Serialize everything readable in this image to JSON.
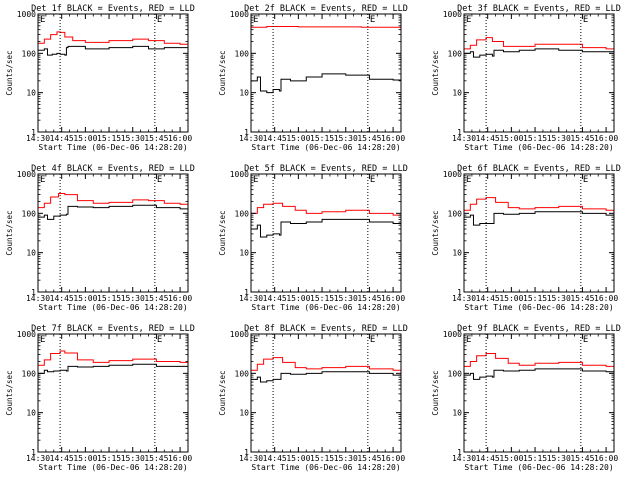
{
  "figure": {
    "ylabel": "Counts/sec",
    "xlabel": "Start Time (06-Dec-06 14:28:20)",
    "flare_marker": "E",
    "colors": {
      "events": "#000000",
      "lld": "#ff0000",
      "axes": "#000000"
    }
  },
  "chart_data": [
    {
      "type": "line",
      "title": "Det 1f BLACK = Events, RED = LLD",
      "xlabel": "Start Time (06-Dec-06 14:28:20)",
      "ylabel": "Counts/sec",
      "x_ticks": [
        "14:30",
        "14:45",
        "15:00",
        "15:15",
        "15:30",
        "15:45",
        "16:00"
      ],
      "y_ticks": [
        "1",
        "10",
        "100",
        "1000"
      ],
      "ylim": [
        1,
        1000
      ],
      "y_scale": "log",
      "xlim": [
        "14:30",
        "16:05"
      ],
      "vlines": [
        "14:44",
        "15:44"
      ],
      "series": [
        {
          "key": "events",
          "x": [
            "14:30",
            "14:34",
            "14:36",
            "14:39",
            "14:42",
            "14:44",
            "14:47",
            "14:48",
            "14:49",
            "14:52",
            "15:00",
            "15:15",
            "15:30",
            "15:40",
            "15:50",
            "16:00",
            "16:05"
          ],
          "y": [
            120,
            130,
            90,
            95,
            100,
            95,
            90,
            140,
            150,
            150,
            130,
            140,
            150,
            130,
            140,
            140,
            140
          ]
        },
        {
          "key": "lld",
          "x": [
            "14:30",
            "14:34",
            "14:38",
            "14:42",
            "14:44",
            "14:47",
            "14:52",
            "15:00",
            "15:15",
            "15:30",
            "15:40",
            "15:50",
            "16:00",
            "16:05"
          ],
          "y": [
            180,
            230,
            300,
            350,
            340,
            260,
            210,
            190,
            210,
            230,
            210,
            180,
            170,
            170
          ]
        }
      ]
    },
    {
      "type": "line",
      "title": "Det 2f BLACK = Events, RED = LLD",
      "xlabel": "Start Time (06-Dec-06 14:28:20)",
      "ylabel": "Counts/sec",
      "x_ticks": [
        "14:30",
        "14:45",
        "15:00",
        "15:15",
        "15:30",
        "15:45",
        "16:00"
      ],
      "y_ticks": [
        "1",
        "10",
        "100",
        "1000"
      ],
      "ylim": [
        1,
        1000
      ],
      "y_scale": "log",
      "xlim": [
        "14:30",
        "16:05"
      ],
      "vlines": [
        "14:44",
        "15:44"
      ],
      "series": [
        {
          "key": "events",
          "x": [
            "14:30",
            "14:34",
            "14:36",
            "14:40",
            "14:44",
            "14:48",
            "14:49",
            "14:55",
            "15:05",
            "15:15",
            "15:30",
            "15:45",
            "16:00",
            "16:05"
          ],
          "y": [
            20,
            25,
            11,
            10,
            12,
            11,
            22,
            20,
            25,
            30,
            28,
            22,
            21,
            21
          ]
        },
        {
          "key": "lld",
          "x": [
            "14:30",
            "14:40",
            "15:00",
            "15:20",
            "15:40",
            "16:05"
          ],
          "y": [
            460,
            480,
            470,
            470,
            460,
            460
          ]
        }
      ]
    },
    {
      "type": "line",
      "title": "Det 3f BLACK = Events, RED = LLD",
      "xlabel": "Start Time (06-Dec-06 14:28:20)",
      "ylabel": "Counts/sec",
      "x_ticks": [
        "14:30",
        "14:45",
        "15:00",
        "15:15",
        "15:30",
        "15:45",
        "16:00"
      ],
      "y_ticks": [
        "1",
        "10",
        "100",
        "1000"
      ],
      "ylim": [
        1,
        1000
      ],
      "y_scale": "log",
      "xlim": [
        "14:30",
        "16:05"
      ],
      "vlines": [
        "14:44",
        "15:44"
      ],
      "series": [
        {
          "key": "events",
          "x": [
            "14:30",
            "14:34",
            "14:36",
            "14:40",
            "14:44",
            "14:48",
            "14:49",
            "14:55",
            "15:05",
            "15:15",
            "15:30",
            "15:45",
            "16:00",
            "16:05"
          ],
          "y": [
            100,
            110,
            80,
            90,
            95,
            85,
            120,
            110,
            120,
            130,
            120,
            110,
            110,
            110
          ]
        },
        {
          "key": "lld",
          "x": [
            "14:30",
            "14:34",
            "14:38",
            "14:44",
            "14:48",
            "14:55",
            "15:05",
            "15:15",
            "15:30",
            "15:45",
            "16:00",
            "16:05"
          ],
          "y": [
            130,
            160,
            220,
            250,
            200,
            150,
            150,
            170,
            170,
            140,
            130,
            130
          ]
        }
      ]
    },
    {
      "type": "line",
      "title": "Det 4f BLACK = Events, RED = LLD",
      "xlabel": "Start Time (06-Dec-06 14:28:20)",
      "ylabel": "Counts/sec",
      "x_ticks": [
        "14:30",
        "14:45",
        "15:00",
        "15:15",
        "15:30",
        "15:45",
        "16:00"
      ],
      "y_ticks": [
        "1",
        "10",
        "100",
        "1000"
      ],
      "ylim": [
        1,
        1000
      ],
      "y_scale": "log",
      "xlim": [
        "14:30",
        "16:05"
      ],
      "vlines": [
        "14:44",
        "15:44"
      ],
      "series": [
        {
          "key": "events",
          "x": [
            "14:30",
            "14:34",
            "14:36",
            "14:40",
            "14:44",
            "14:48",
            "14:49",
            "14:55",
            "15:05",
            "15:15",
            "15:30",
            "15:45",
            "16:00",
            "16:05"
          ],
          "y": [
            80,
            90,
            70,
            85,
            90,
            95,
            150,
            145,
            140,
            150,
            160,
            140,
            130,
            130
          ]
        },
        {
          "key": "lld",
          "x": [
            "14:30",
            "14:34",
            "14:38",
            "14:43",
            "14:47",
            "14:55",
            "15:05",
            "15:15",
            "15:30",
            "15:40",
            "15:50",
            "16:00",
            "16:05"
          ],
          "y": [
            140,
            180,
            260,
            320,
            300,
            210,
            180,
            190,
            220,
            210,
            180,
            170,
            170
          ]
        }
      ]
    },
    {
      "type": "line",
      "title": "Det 5f BLACK = Events, RED = LLD",
      "xlabel": "Start Time (06-Dec-06 14:28:20)",
      "ylabel": "Counts/sec",
      "x_ticks": [
        "14:30",
        "14:45",
        "15:00",
        "15:15",
        "15:30",
        "15:45",
        "16:00"
      ],
      "y_ticks": [
        "1",
        "10",
        "100",
        "1000"
      ],
      "ylim": [
        1,
        1000
      ],
      "y_scale": "log",
      "xlim": [
        "14:30",
        "16:05"
      ],
      "vlines": [
        "14:44",
        "15:44"
      ],
      "series": [
        {
          "key": "events",
          "x": [
            "14:30",
            "14:34",
            "14:36",
            "14:40",
            "14:44",
            "14:48",
            "14:49",
            "14:55",
            "15:05",
            "15:15",
            "15:30",
            "15:45",
            "16:00",
            "16:05"
          ],
          "y": [
            40,
            50,
            25,
            28,
            30,
            28,
            60,
            55,
            60,
            70,
            70,
            60,
            55,
            55
          ]
        },
        {
          "key": "lld",
          "x": [
            "14:30",
            "14:34",
            "14:38",
            "14:44",
            "14:50",
            "14:58",
            "15:05",
            "15:15",
            "15:30",
            "15:45",
            "16:00",
            "16:05"
          ],
          "y": [
            100,
            140,
            170,
            180,
            150,
            120,
            100,
            110,
            120,
            100,
            90,
            90
          ]
        }
      ]
    },
    {
      "type": "line",
      "title": "Det 6f BLACK = Events, RED = LLD",
      "xlabel": "Start Time (06-Dec-06 14:28:20)",
      "ylabel": "Counts/sec",
      "x_ticks": [
        "14:30",
        "14:45",
        "15:00",
        "15:15",
        "15:30",
        "15:45",
        "16:00"
      ],
      "y_ticks": [
        "1",
        "10",
        "100",
        "1000"
      ],
      "ylim": [
        1,
        1000
      ],
      "y_scale": "log",
      "xlim": [
        "14:30",
        "16:05"
      ],
      "vlines": [
        "14:44",
        "15:44"
      ],
      "series": [
        {
          "key": "events",
          "x": [
            "14:30",
            "14:34",
            "14:36",
            "14:40",
            "14:44",
            "14:48",
            "14:49",
            "14:55",
            "15:05",
            "15:15",
            "15:30",
            "15:45",
            "16:00",
            "16:05"
          ],
          "y": [
            80,
            90,
            50,
            55,
            55,
            55,
            100,
            95,
            100,
            110,
            110,
            100,
            90,
            90
          ]
        },
        {
          "key": "lld",
          "x": [
            "14:30",
            "14:34",
            "14:38",
            "14:44",
            "14:50",
            "14:58",
            "15:05",
            "15:15",
            "15:30",
            "15:45",
            "16:00",
            "16:05"
          ],
          "y": [
            120,
            170,
            230,
            250,
            190,
            140,
            130,
            140,
            150,
            130,
            120,
            120
          ]
        }
      ]
    },
    {
      "type": "line",
      "title": "Det 7f BLACK = Events, RED = LLD",
      "xlabel": "Start Time (06-Dec-06 14:28:20)",
      "ylabel": "Counts/sec",
      "x_ticks": [
        "14:30",
        "14:45",
        "15:00",
        "15:15",
        "15:30",
        "15:45",
        "16:00"
      ],
      "y_ticks": [
        "1",
        "10",
        "100",
        "1000"
      ],
      "ylim": [
        1,
        1000
      ],
      "y_scale": "log",
      "xlim": [
        "14:30",
        "16:05"
      ],
      "vlines": [
        "14:44",
        "15:44"
      ],
      "series": [
        {
          "key": "events",
          "x": [
            "14:30",
            "14:34",
            "14:36",
            "14:40",
            "14:44",
            "14:48",
            "14:49",
            "14:55",
            "15:05",
            "15:15",
            "15:30",
            "15:45",
            "16:00",
            "16:05"
          ],
          "y": [
            100,
            120,
            110,
            115,
            120,
            115,
            150,
            145,
            150,
            160,
            170,
            150,
            150,
            150
          ]
        },
        {
          "key": "lld",
          "x": [
            "14:30",
            "14:34",
            "14:38",
            "14:44",
            "14:47",
            "14:55",
            "15:05",
            "15:15",
            "15:30",
            "15:45",
            "16:00",
            "16:05"
          ],
          "y": [
            160,
            220,
            320,
            370,
            330,
            220,
            190,
            210,
            230,
            200,
            190,
            190
          ]
        }
      ]
    },
    {
      "type": "line",
      "title": "Det 8f BLACK = Events, RED = LLD",
      "xlabel": "Start Time (06-Dec-06 14:28:20)",
      "ylabel": "Counts/sec",
      "x_ticks": [
        "14:30",
        "14:45",
        "15:00",
        "15:15",
        "15:30",
        "15:45",
        "16:00"
      ],
      "y_ticks": [
        "1",
        "10",
        "100",
        "1000"
      ],
      "ylim": [
        1,
        1000
      ],
      "y_scale": "log",
      "xlim": [
        "14:30",
        "16:05"
      ],
      "vlines": [
        "14:44",
        "15:44"
      ],
      "series": [
        {
          "key": "events",
          "x": [
            "14:30",
            "14:34",
            "14:36",
            "14:40",
            "14:44",
            "14:48",
            "14:49",
            "14:55",
            "15:05",
            "15:15",
            "15:30",
            "15:45",
            "16:00",
            "16:05"
          ],
          "y": [
            70,
            80,
            60,
            65,
            70,
            70,
            100,
            95,
            100,
            110,
            110,
            100,
            90,
            90
          ]
        },
        {
          "key": "lld",
          "x": [
            "14:30",
            "14:34",
            "14:38",
            "14:44",
            "14:50",
            "14:58",
            "15:05",
            "15:15",
            "15:30",
            "15:45",
            "16:00",
            "16:05"
          ],
          "y": [
            120,
            170,
            230,
            250,
            190,
            140,
            130,
            140,
            150,
            130,
            120,
            120
          ]
        }
      ]
    },
    {
      "type": "line",
      "title": "Det 9f BLACK = Events, RED = LLD",
      "xlabel": "Start Time (06-Dec-06 14:28:20)",
      "ylabel": "Counts/sec",
      "x_ticks": [
        "14:30",
        "14:45",
        "15:00",
        "15:15",
        "15:30",
        "15:45",
        "16:00"
      ],
      "y_ticks": [
        "1",
        "10",
        "100",
        "1000"
      ],
      "ylim": [
        1,
        1000
      ],
      "y_scale": "log",
      "xlim": [
        "14:30",
        "16:05"
      ],
      "vlines": [
        "14:44",
        "15:44"
      ],
      "series": [
        {
          "key": "events",
          "x": [
            "14:30",
            "14:34",
            "14:36",
            "14:40",
            "14:44",
            "14:48",
            "14:49",
            "14:55",
            "15:05",
            "15:15",
            "15:30",
            "15:45",
            "16:00",
            "16:05"
          ],
          "y": [
            90,
            100,
            70,
            80,
            85,
            80,
            120,
            115,
            120,
            130,
            130,
            115,
            110,
            110
          ]
        },
        {
          "key": "lld",
          "x": [
            "14:30",
            "14:34",
            "14:38",
            "14:44",
            "14:50",
            "14:58",
            "15:05",
            "15:15",
            "15:30",
            "15:45",
            "16:00",
            "16:05"
          ],
          "y": [
            150,
            200,
            280,
            320,
            240,
            180,
            160,
            180,
            190,
            160,
            150,
            150
          ]
        }
      ]
    }
  ]
}
